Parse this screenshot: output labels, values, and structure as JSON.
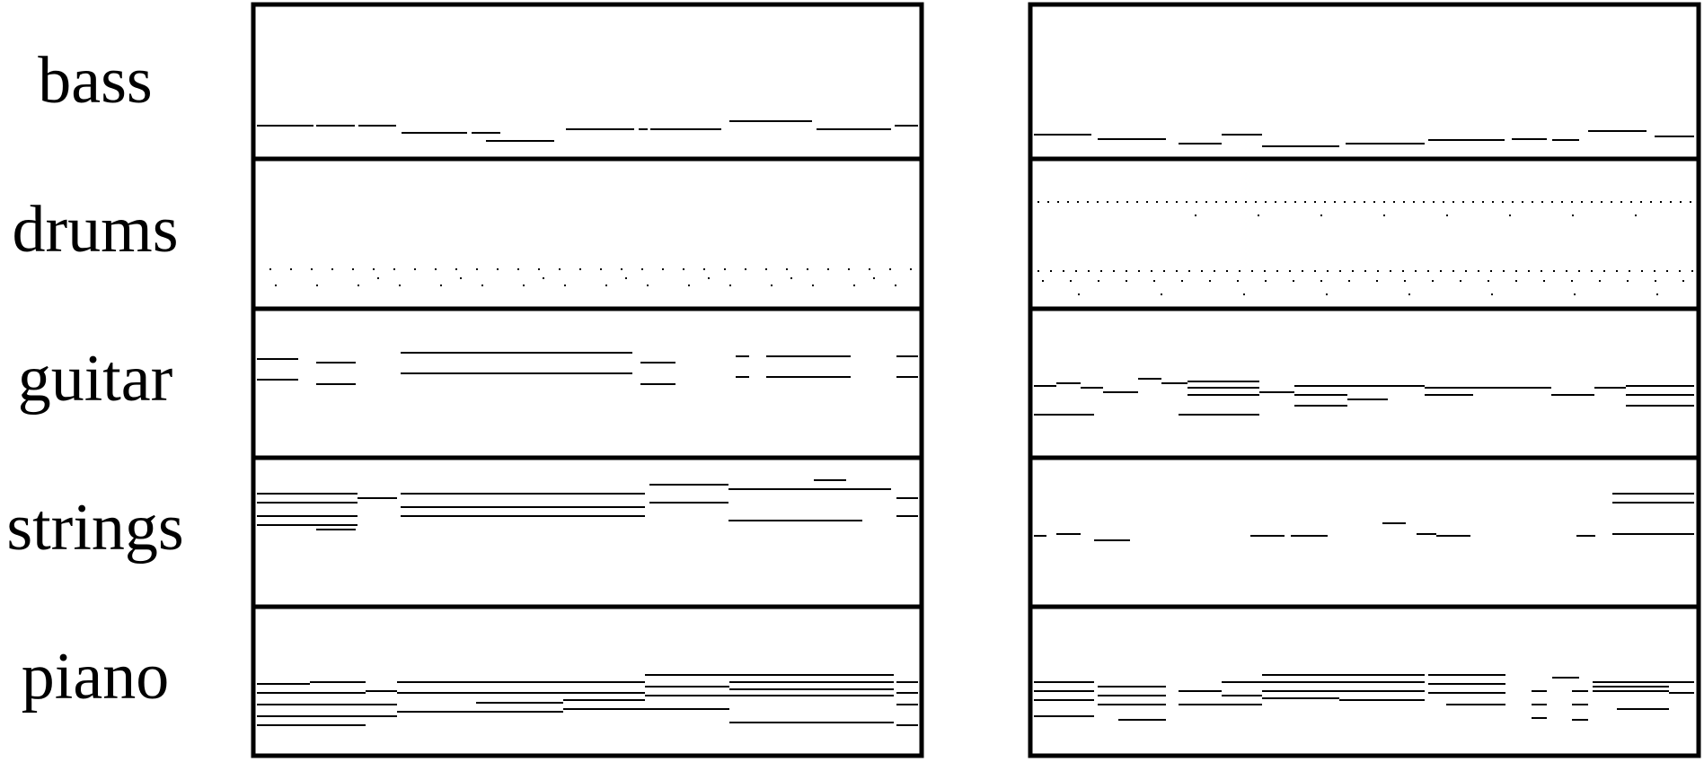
{
  "tracks": [
    "bass",
    "drums",
    "guitar",
    "strings",
    "piano"
  ],
  "panels": [
    "left",
    "right"
  ]
}
